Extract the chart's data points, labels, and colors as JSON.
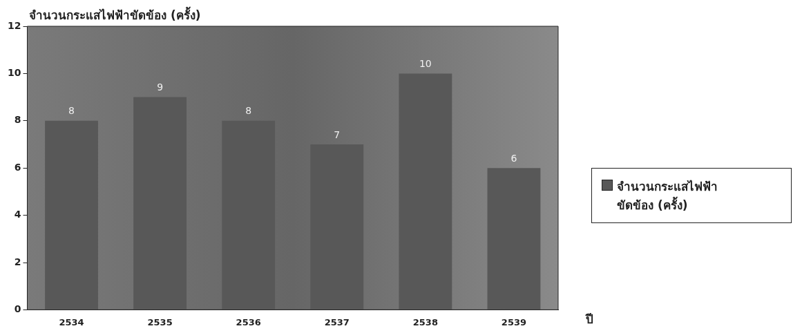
{
  "chart_data": {
    "type": "bar",
    "ylabel": "จำนวนกระแสไฟฟ้าขัดข้อง (ครั้ง)",
    "xlabel": "ปี",
    "categories": [
      "2534",
      "2535",
      "2536",
      "2537",
      "2538",
      "2539"
    ],
    "series": [
      {
        "name": "จำนวนกระแสไฟฟ้าขัดข้อง (ครั้ง)",
        "color": "#585858",
        "values": [
          8,
          9,
          8,
          7,
          10,
          6
        ]
      }
    ],
    "ylim": [
      0,
      12
    ],
    "yticks": [
      0,
      2,
      4,
      6,
      8,
      10,
      12
    ],
    "data_labels": true,
    "legend": "right",
    "grid": false
  }
}
